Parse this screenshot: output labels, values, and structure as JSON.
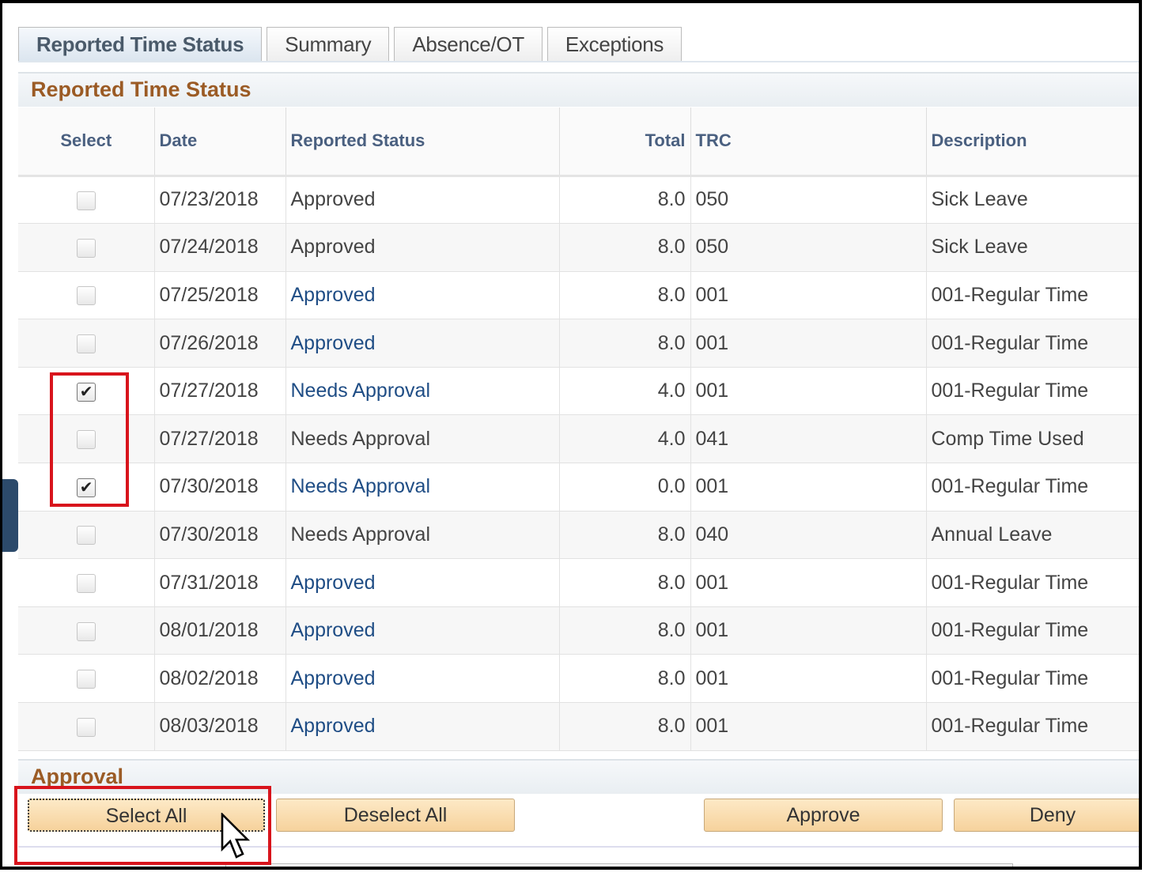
{
  "tabs": [
    {
      "label": "Reported Time Status",
      "active": true
    },
    {
      "label": "Summary"
    },
    {
      "label": "Absence/OT"
    },
    {
      "label": "Exceptions"
    }
  ],
  "section_title": "Reported Time Status",
  "columns": [
    "Select",
    "Date",
    "Reported Status",
    "Total",
    "TRC",
    "Description"
  ],
  "rows": [
    {
      "checked": false,
      "date": "07/23/2018",
      "status": "Approved",
      "link": false,
      "total": "8.0",
      "trc": "050",
      "desc": "Sick Leave"
    },
    {
      "checked": false,
      "date": "07/24/2018",
      "status": "Approved",
      "link": false,
      "total": "8.0",
      "trc": "050",
      "desc": "Sick Leave"
    },
    {
      "checked": false,
      "date": "07/25/2018",
      "status": "Approved",
      "link": true,
      "total": "8.0",
      "trc": "001",
      "desc": "001-Regular Time"
    },
    {
      "checked": false,
      "date": "07/26/2018",
      "status": "Approved",
      "link": true,
      "total": "8.0",
      "trc": "001",
      "desc": "001-Regular Time"
    },
    {
      "checked": true,
      "date": "07/27/2018",
      "status": "Needs Approval",
      "link": true,
      "total": "4.0",
      "trc": "001",
      "desc": "001-Regular Time"
    },
    {
      "checked": false,
      "date": "07/27/2018",
      "status": "Needs Approval",
      "link": false,
      "total": "4.0",
      "trc": "041",
      "desc": "Comp Time Used"
    },
    {
      "checked": true,
      "date": "07/30/2018",
      "status": "Needs Approval",
      "link": true,
      "total": "0.0",
      "trc": "001",
      "desc": "001-Regular Time"
    },
    {
      "checked": false,
      "date": "07/30/2018",
      "status": "Needs Approval",
      "link": false,
      "total": "8.0",
      "trc": "040",
      "desc": "Annual Leave"
    },
    {
      "checked": false,
      "date": "07/31/2018",
      "status": "Approved",
      "link": true,
      "total": "8.0",
      "trc": "001",
      "desc": "001-Regular Time"
    },
    {
      "checked": false,
      "date": "08/01/2018",
      "status": "Approved",
      "link": true,
      "total": "8.0",
      "trc": "001",
      "desc": "001-Regular Time"
    },
    {
      "checked": false,
      "date": "08/02/2018",
      "status": "Approved",
      "link": true,
      "total": "8.0",
      "trc": "001",
      "desc": "001-Regular Time"
    },
    {
      "checked": false,
      "date": "08/03/2018",
      "status": "Approved",
      "link": true,
      "total": "8.0",
      "trc": "001",
      "desc": "001-Regular Time"
    }
  ],
  "approval": {
    "title": "Approval",
    "select_all": "Select All",
    "deselect_all": "Deselect All",
    "approve": "Approve",
    "deny": "Deny"
  },
  "colors": {
    "section_title": "#9b5b25",
    "link": "#1f4d85",
    "highlight": "#d8141c",
    "button": "#f6d29c"
  }
}
